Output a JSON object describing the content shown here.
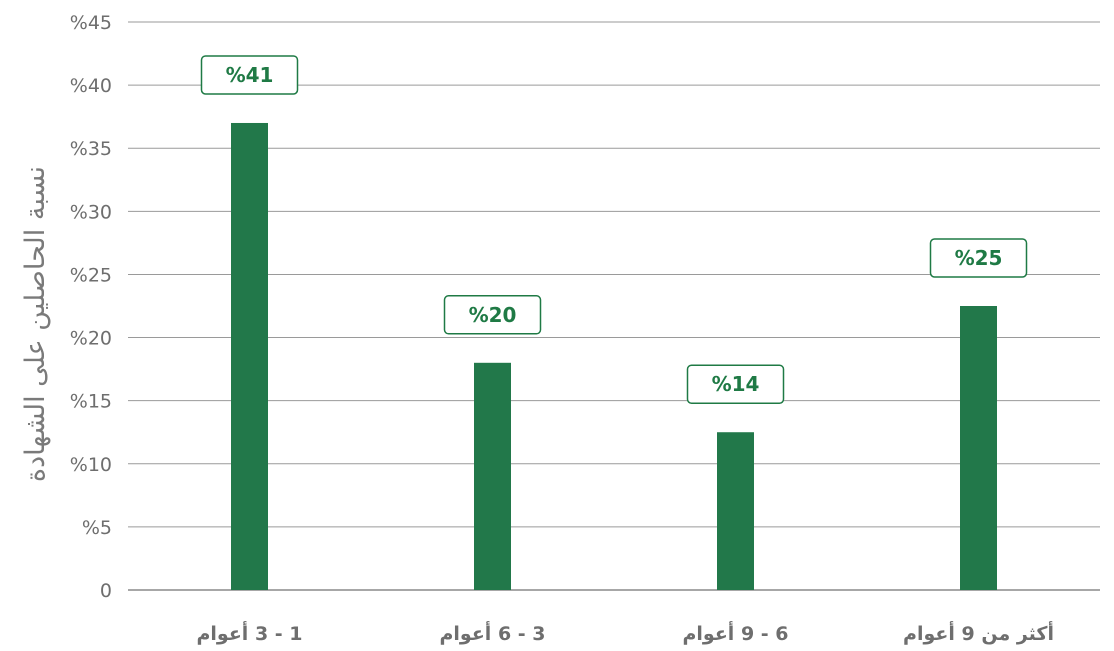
{
  "chart_data": {
    "type": "bar",
    "categories": [
      "1 - 3 أعوام",
      "3 - 6 أعوام",
      "6 - 9 أعوام",
      "أكثر من 9 أعوام"
    ],
    "values": [
      37,
      18,
      12.5,
      22.5
    ],
    "data_labels": [
      "%41",
      "%20",
      "%14",
      "%25"
    ],
    "ylabel": "نسبة الحاصلين على الشهادة",
    "ylim": [
      0,
      45
    ],
    "yticks": [
      {
        "value": 0,
        "label": "0"
      },
      {
        "value": 5,
        "label": "%5"
      },
      {
        "value": 10,
        "label": "%10"
      },
      {
        "value": 15,
        "label": "%15"
      },
      {
        "value": 20,
        "label": "%20"
      },
      {
        "value": 25,
        "label": "%25"
      },
      {
        "value": 30,
        "label": "%30"
      },
      {
        "value": 35,
        "label": "%35"
      },
      {
        "value": 40,
        "label": "%40"
      },
      {
        "value": 45,
        "label": "%45"
      }
    ],
    "grid": true,
    "bar_color": "#22784a",
    "label_color": "#1f7a45"
  }
}
